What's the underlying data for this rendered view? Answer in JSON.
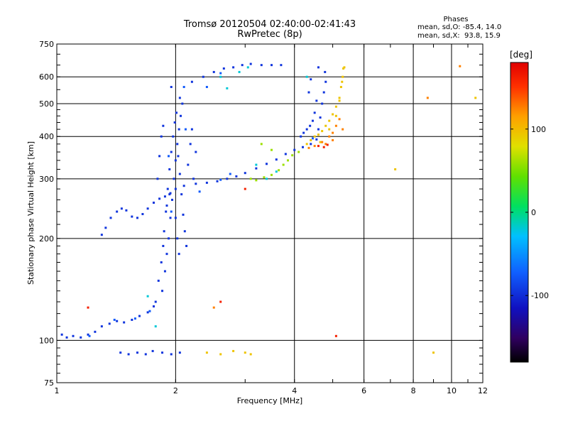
{
  "header": {
    "title_line1": "Tromsø 20120504 02:40:00-02:41:43",
    "title_line2": "RwPretec (8p)",
    "phases_title": "Phases",
    "phases_line1": "mean, sd,O: -85.4, 14.0",
    "phases_line2": "mean, sd,X:  93.8, 15.9"
  },
  "chart_data": {
    "type": "scatter",
    "xlabel": "Frequency [MHz]",
    "ylabel": "Stationary phase Virtual Height [km]",
    "xscale": "log",
    "yscale": "log",
    "xlim": [
      1,
      12
    ],
    "ylim": [
      75,
      750
    ],
    "xticks": [
      1,
      2,
      4,
      6,
      8,
      10,
      12
    ],
    "yticks": [
      75,
      100,
      200,
      300,
      400,
      500,
      600,
      750
    ],
    "x_grid": [
      2,
      4,
      6,
      8,
      10
    ],
    "y_grid": [
      100,
      200,
      300,
      400,
      500,
      600
    ],
    "colorbar": {
      "label": "[deg]",
      "range": [
        -180,
        180
      ],
      "ticks": [
        100,
        0,
        -100
      ]
    },
    "series": [
      {
        "phase_deg": -95,
        "points": [
          [
            1.03,
            104
          ],
          [
            1.06,
            102
          ],
          [
            1.1,
            103
          ],
          [
            1.15,
            102
          ],
          [
            1.2,
            104
          ],
          [
            1.25,
            106
          ],
          [
            1.3,
            110
          ],
          [
            1.36,
            112
          ],
          [
            1.42,
            114
          ],
          [
            1.48,
            113
          ],
          [
            1.55,
            115
          ],
          [
            1.62,
            118
          ],
          [
            1.7,
            121
          ],
          [
            1.76,
            126
          ],
          [
            1.3,
            205
          ],
          [
            1.33,
            215
          ],
          [
            1.37,
            230
          ],
          [
            1.42,
            240
          ],
          [
            1.46,
            245
          ],
          [
            1.5,
            242
          ],
          [
            1.55,
            232
          ],
          [
            1.6,
            230
          ],
          [
            1.65,
            236
          ],
          [
            1.7,
            245
          ],
          [
            1.76,
            255
          ],
          [
            1.82,
            262
          ],
          [
            1.88,
            266
          ],
          [
            1.94,
            272
          ],
          [
            2.0,
            280
          ],
          [
            2.1,
            286
          ],
          [
            2.25,
            290
          ],
          [
            2.4,
            292
          ],
          [
            2.55,
            295
          ],
          [
            2.7,
            300
          ],
          [
            2.85,
            305
          ],
          [
            3.0,
            312
          ],
          [
            3.2,
            322
          ],
          [
            3.4,
            332
          ],
          [
            3.6,
            342
          ],
          [
            3.8,
            355
          ],
          [
            4.0,
            365
          ],
          [
            4.2,
            372
          ],
          [
            4.4,
            380
          ],
          [
            4.55,
            392
          ],
          [
            4.6,
            420
          ],
          [
            4.65,
            455
          ],
          [
            4.7,
            500
          ],
          [
            4.75,
            540
          ],
          [
            4.8,
            580
          ],
          [
            4.78,
            620
          ],
          [
            4.6,
            640
          ],
          [
            4.4,
            590
          ],
          [
            4.35,
            540
          ],
          [
            2.2,
            580
          ],
          [
            2.35,
            600
          ],
          [
            2.5,
            620
          ],
          [
            2.65,
            635
          ],
          [
            2.8,
            640
          ],
          [
            2.95,
            650
          ],
          [
            3.1,
            655
          ],
          [
            3.3,
            650
          ],
          [
            3.5,
            650
          ],
          [
            3.7,
            650
          ],
          [
            1.95,
            560
          ],
          [
            2.05,
            520
          ],
          [
            1.85,
            140
          ],
          [
            1.88,
            160
          ],
          [
            1.9,
            180
          ],
          [
            1.92,
            200
          ],
          [
            1.94,
            230
          ],
          [
            1.96,
            260
          ],
          [
            1.98,
            300
          ],
          [
            2.0,
            340
          ],
          [
            2.02,
            380
          ],
          [
            2.04,
            420
          ],
          [
            2.06,
            460
          ],
          [
            2.08,
            500
          ],
          [
            1.86,
            190
          ],
          [
            1.89,
            240
          ],
          [
            1.91,
            280
          ],
          [
            1.93,
            320
          ],
          [
            1.95,
            360
          ],
          [
            1.97,
            400
          ],
          [
            1.99,
            440
          ],
          [
            2.01,
            470
          ],
          [
            2.03,
            350
          ],
          [
            2.05,
            310
          ],
          [
            2.07,
            270
          ],
          [
            2.09,
            235
          ],
          [
            2.11,
            210
          ],
          [
            2.13,
            190
          ],
          [
            1.8,
            300
          ],
          [
            1.82,
            350
          ],
          [
            1.84,
            400
          ],
          [
            1.86,
            430
          ],
          [
            2.15,
            330
          ],
          [
            2.18,
            380
          ],
          [
            2.2,
            420
          ],
          [
            2.22,
            300
          ],
          [
            2.25,
            360
          ],
          [
            1.78,
            130
          ],
          [
            1.81,
            150
          ],
          [
            1.84,
            170
          ],
          [
            1.87,
            210
          ],
          [
            1.9,
            250
          ],
          [
            1.93,
            270
          ],
          [
            2.0,
            230
          ],
          [
            2.02,
            200
          ],
          [
            2.04,
            180
          ],
          [
            1.45,
            92
          ],
          [
            1.52,
            91
          ],
          [
            1.6,
            92
          ],
          [
            1.68,
            91
          ],
          [
            1.75,
            93
          ],
          [
            1.85,
            92
          ],
          [
            1.95,
            91
          ],
          [
            2.05,
            92
          ],
          [
            4.15,
            400
          ],
          [
            4.22,
            410
          ],
          [
            4.3,
            420
          ],
          [
            4.38,
            430
          ],
          [
            4.45,
            445
          ],
          [
            4.5,
            470
          ],
          [
            4.55,
            510
          ]
        ]
      },
      {
        "phase_deg": -75,
        "points": [
          [
            1.21,
            103
          ],
          [
            1.4,
            115
          ],
          [
            1.58,
            116
          ],
          [
            1.72,
            122
          ],
          [
            1.95,
            240
          ],
          [
            2.12,
            420
          ],
          [
            2.3,
            275
          ],
          [
            2.6,
            298
          ],
          [
            2.75,
            310
          ],
          [
            1.92,
            350
          ],
          [
            2.4,
            560
          ],
          [
            2.6,
            615
          ],
          [
            2.1,
            560
          ],
          [
            4.45,
            395
          ]
        ]
      },
      {
        "phase_deg": -20,
        "points": [
          [
            2.6,
            600
          ],
          [
            2.9,
            620
          ],
          [
            3.05,
            640
          ],
          [
            3.2,
            330
          ],
          [
            3.4,
            300
          ],
          [
            3.6,
            315
          ],
          [
            1.78,
            110
          ],
          [
            2.7,
            555
          ],
          [
            4.3,
            600
          ],
          [
            1.7,
            135
          ]
        ]
      },
      {
        "phase_deg": 60,
        "points": [
          [
            3.1,
            300
          ],
          [
            3.2,
            297
          ],
          [
            3.35,
            303
          ],
          [
            3.5,
            308
          ],
          [
            3.65,
            318
          ],
          [
            3.75,
            330
          ],
          [
            3.85,
            340
          ],
          [
            3.95,
            352
          ],
          [
            4.1,
            360
          ],
          [
            3.5,
            365
          ],
          [
            3.3,
            380
          ]
        ]
      },
      {
        "phase_deg": 95,
        "points": [
          [
            2.4,
            92
          ],
          [
            2.6,
            91
          ],
          [
            2.8,
            93
          ],
          [
            3.0,
            92
          ],
          [
            3.1,
            91
          ],
          [
            4.3,
            380
          ],
          [
            4.4,
            390
          ],
          [
            4.5,
            400
          ],
          [
            4.6,
            405
          ],
          [
            4.7,
            415
          ],
          [
            4.8,
            430
          ],
          [
            4.9,
            445
          ],
          [
            5.0,
            465
          ],
          [
            5.1,
            490
          ],
          [
            5.2,
            520
          ],
          [
            5.25,
            560
          ],
          [
            5.3,
            600
          ],
          [
            5.32,
            635
          ],
          [
            4.65,
            385
          ],
          [
            4.9,
            420
          ],
          [
            5.1,
            460
          ],
          [
            5.2,
            510
          ],
          [
            5.28,
            580
          ],
          [
            5.35,
            640
          ],
          [
            9.0,
            92
          ],
          [
            11.5,
            520
          ],
          [
            7.2,
            320
          ]
        ]
      },
      {
        "phase_deg": 125,
        "points": [
          [
            4.35,
            370
          ],
          [
            4.5,
            375
          ],
          [
            4.7,
            385
          ],
          [
            4.9,
            400
          ],
          [
            5.0,
            410
          ],
          [
            5.1,
            430
          ],
          [
            5.2,
            450
          ],
          [
            4.8,
            380
          ],
          [
            5.3,
            420
          ],
          [
            5.0,
            390
          ],
          [
            10.5,
            645
          ],
          [
            8.7,
            520
          ],
          [
            2.5,
            125
          ]
        ]
      },
      {
        "phase_deg": 160,
        "points": [
          [
            4.6,
            375
          ],
          [
            4.75,
            372
          ],
          [
            4.85,
            378
          ],
          [
            1.2,
            125
          ],
          [
            3.0,
            280
          ],
          [
            5.1,
            103
          ],
          [
            2.6,
            130
          ]
        ]
      }
    ]
  }
}
